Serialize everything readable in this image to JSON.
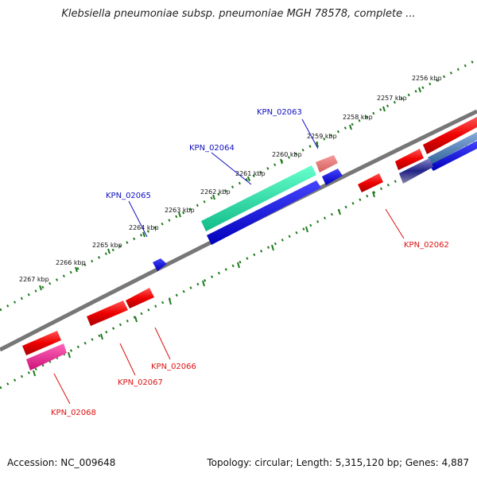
{
  "title": "Klebsiella pneumoniae subsp. pneumoniae MGH 78578, complete ...",
  "footer": {
    "accession": "Accession: NC_009648",
    "topology": "Topology: circular; Length: 5,315,120 bp; Genes: 4,887"
  },
  "colors": {
    "backbone": "#777777",
    "tick": "#1f7a1f",
    "forward_label": "#1010c0",
    "reverse_label": "#dd1111"
  },
  "ticks": [
    {
      "label": "2256 kbp"
    },
    {
      "label": "2257 kbp"
    },
    {
      "label": "2258 kbp"
    },
    {
      "label": "2259 kbp"
    },
    {
      "label": "2260 kbp"
    },
    {
      "label": "2261 kbp"
    },
    {
      "label": "2262 kbp"
    },
    {
      "label": "2263 kbp"
    },
    {
      "label": "2264 kbp"
    },
    {
      "label": "2265 kbp"
    },
    {
      "label": "2266 kbp"
    },
    {
      "label": "2267 kbp"
    }
  ],
  "loci": [
    {
      "label": "KPN_02063",
      "strand": "forward"
    },
    {
      "label": "KPN_02064",
      "strand": "forward"
    },
    {
      "label": "KPN_02065",
      "strand": "forward"
    },
    {
      "label": "KPN_02062",
      "strand": "reverse"
    },
    {
      "label": "KPN_02066",
      "strand": "reverse"
    },
    {
      "label": "KPN_02067",
      "strand": "reverse"
    },
    {
      "label": "KPN_02068",
      "strand": "reverse"
    }
  ]
}
